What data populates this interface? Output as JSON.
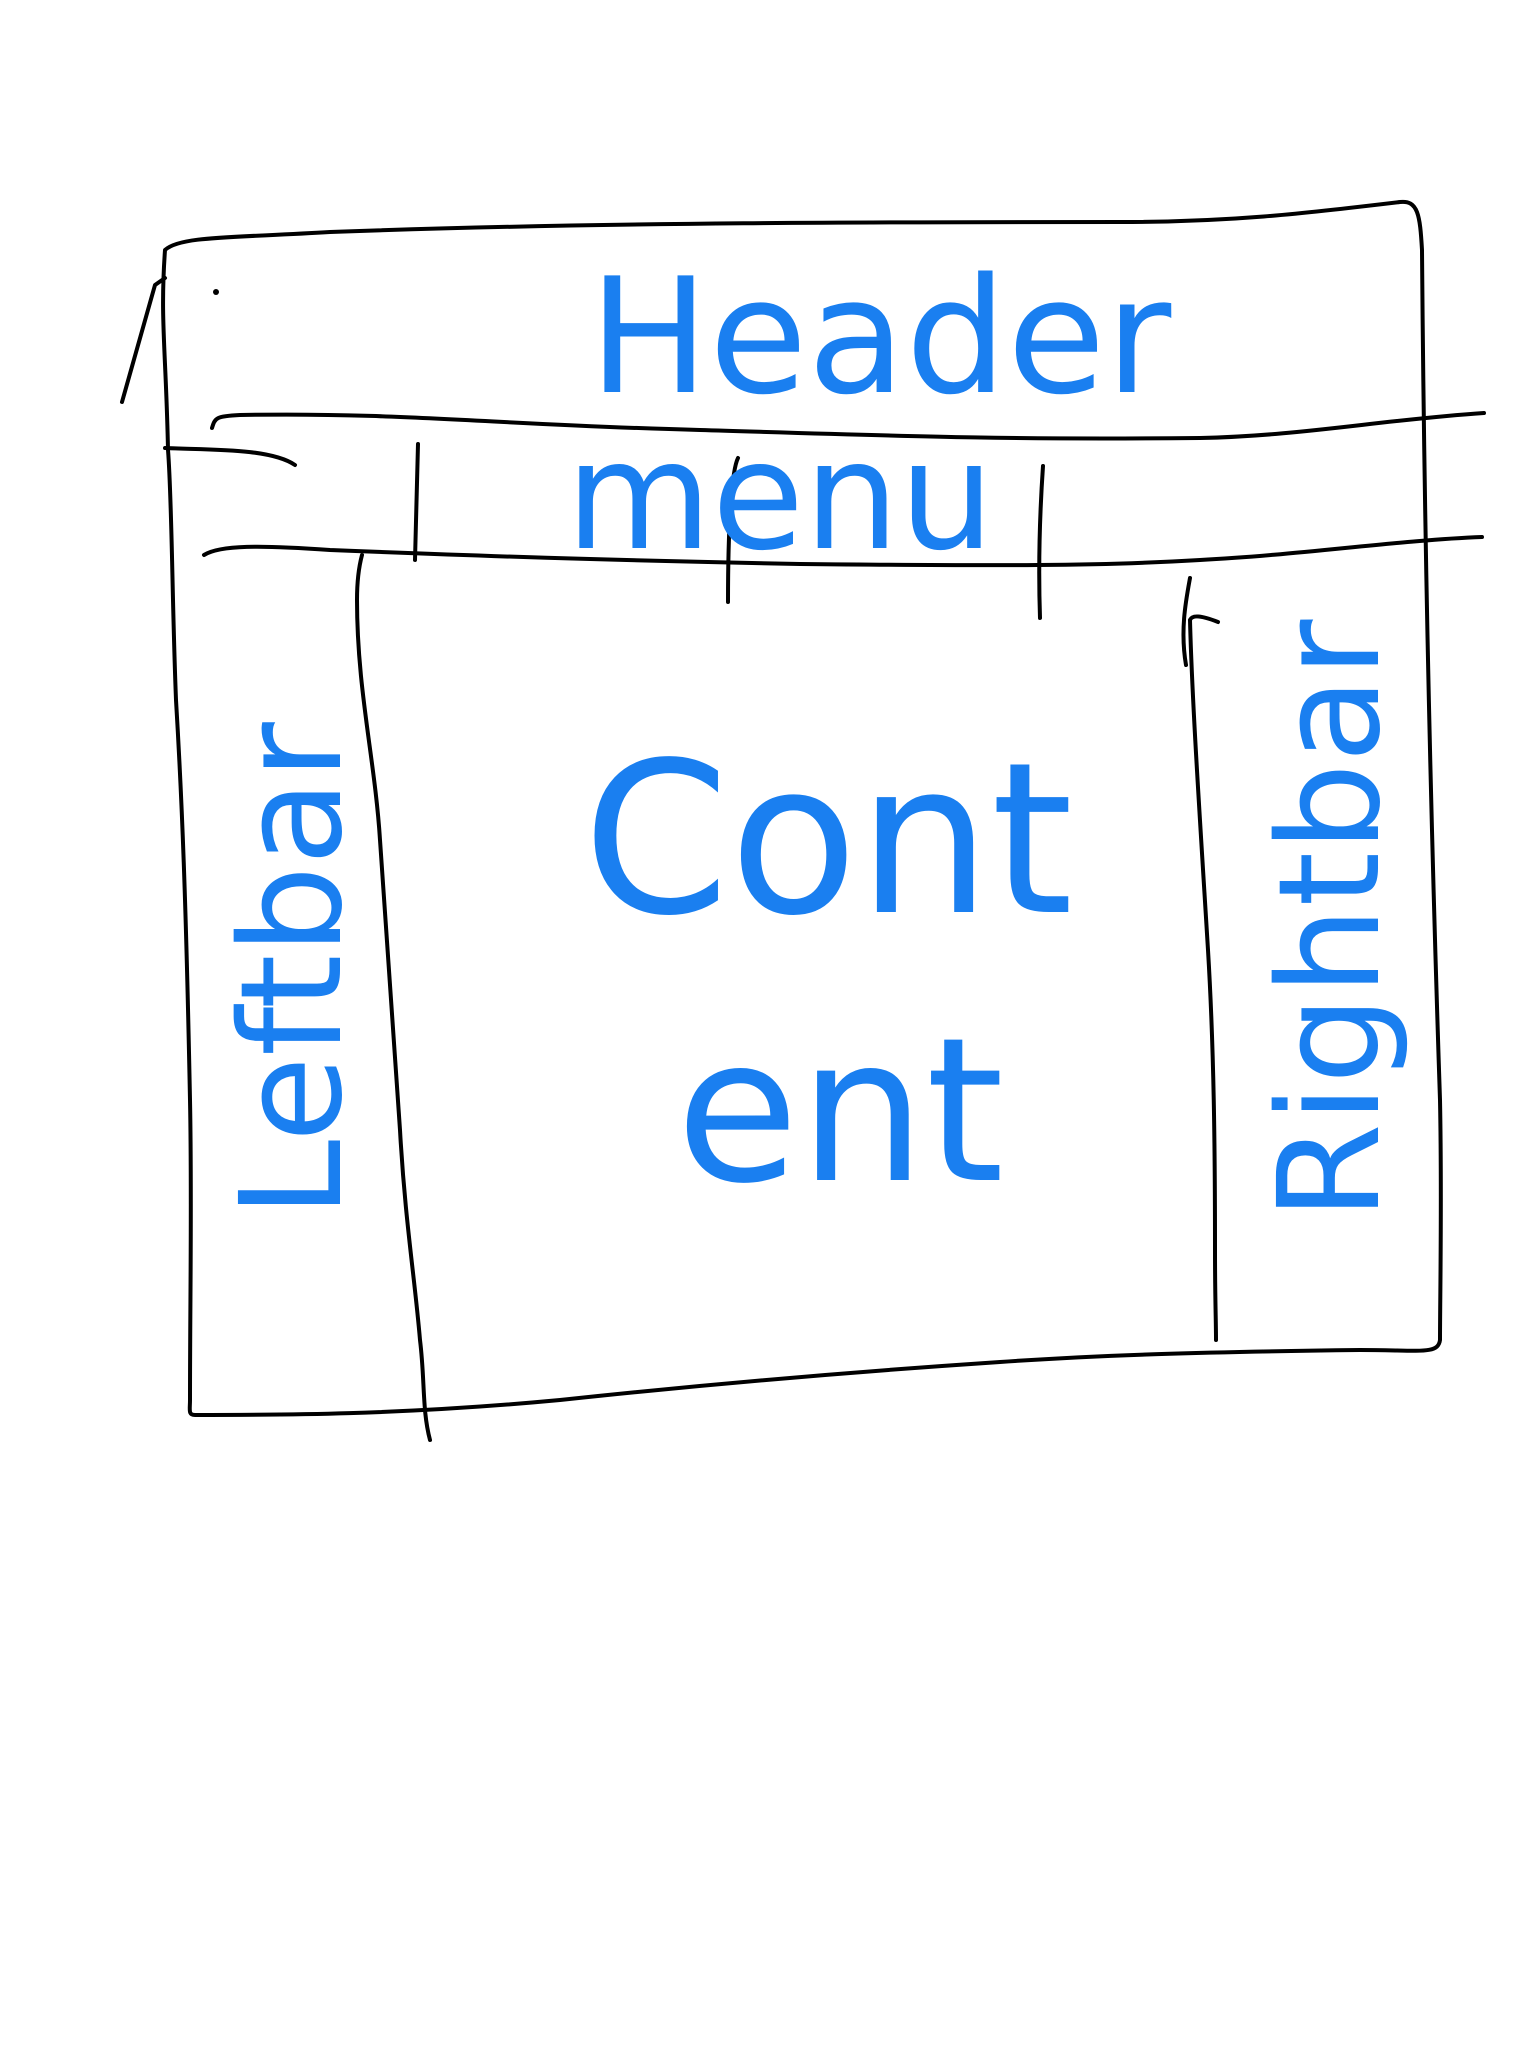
{
  "header": {
    "label": "Header"
  },
  "menu": {
    "label": "menu"
  },
  "left_sidebar": {
    "label": "Leftbar"
  },
  "right_sidebar": {
    "label": "Rightbar"
  },
  "content": {
    "line1": "Cont",
    "line2": "ent"
  },
  "colors": {
    "ink": "#000000",
    "handwriting": "#1a7ff0",
    "background": "#ffffff"
  }
}
